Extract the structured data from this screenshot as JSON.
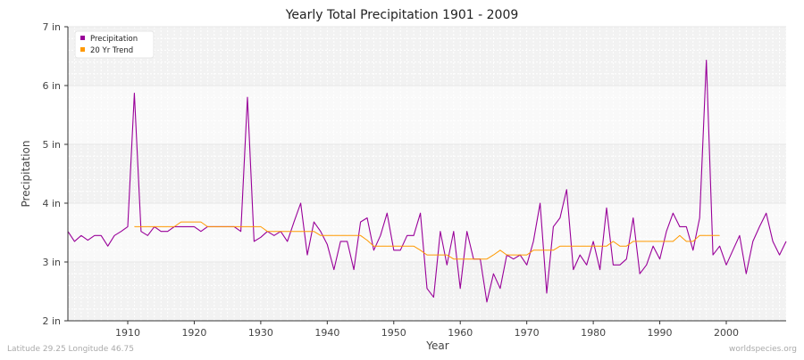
{
  "chart_data": {
    "type": "line",
    "title": "Yearly Total Precipitation 1901 - 2009",
    "xlabel": "Year",
    "ylabel": "Precipitation",
    "xlim": [
      1901,
      2009
    ],
    "ylim": [
      2,
      7
    ],
    "x_ticks": [
      1910,
      1920,
      1930,
      1940,
      1950,
      1960,
      1970,
      1980,
      1990,
      2000
    ],
    "y_ticks": [
      {
        "value": 2,
        "label": "2 in"
      },
      {
        "value": 3,
        "label": "3 in"
      },
      {
        "value": 4,
        "label": "4 in"
      },
      {
        "value": 5,
        "label": "5 in"
      },
      {
        "value": 6,
        "label": "6 in"
      },
      {
        "value": 7,
        "label": "7 in"
      }
    ],
    "grid": true,
    "legend_position": "top-left",
    "series": [
      {
        "name": "Precipitation",
        "color": "#990099",
        "x_start": 1901,
        "values": [
          3.52,
          3.35,
          3.45,
          3.37,
          3.45,
          3.45,
          3.27,
          3.45,
          3.52,
          3.6,
          5.87,
          3.52,
          3.45,
          3.6,
          3.52,
          3.52,
          3.6,
          3.6,
          3.6,
          3.6,
          3.52,
          3.6,
          3.6,
          3.6,
          3.6,
          3.6,
          3.52,
          5.8,
          3.35,
          3.42,
          3.52,
          3.45,
          3.52,
          3.35,
          3.68,
          4.0,
          3.12,
          3.68,
          3.52,
          3.3,
          2.87,
          3.35,
          3.35,
          2.87,
          3.68,
          3.75,
          3.2,
          3.45,
          3.83,
          3.2,
          3.2,
          3.45,
          3.45,
          3.83,
          2.55,
          2.4,
          3.52,
          2.95,
          3.52,
          2.55,
          3.52,
          3.05,
          3.05,
          2.32,
          2.8,
          2.55,
          3.12,
          3.05,
          3.12,
          2.95,
          3.35,
          4.0,
          2.47,
          3.6,
          3.75,
          4.23,
          2.87,
          3.12,
          2.95,
          3.35,
          2.87,
          3.92,
          2.95,
          2.95,
          3.05,
          3.75,
          2.8,
          2.95,
          3.27,
          3.05,
          3.52,
          3.83,
          3.6,
          3.6,
          3.2,
          3.75,
          6.43,
          3.12,
          3.27,
          2.95,
          3.2,
          3.45,
          2.8,
          3.35,
          3.6,
          3.83,
          3.35,
          3.12,
          3.35
        ]
      },
      {
        "name": "20 Yr Trend",
        "color": "#ff9900",
        "x_start": 1911,
        "values": [
          3.6,
          3.6,
          3.6,
          3.6,
          3.6,
          3.6,
          3.6,
          3.68,
          3.68,
          3.68,
          3.68,
          3.6,
          3.6,
          3.6,
          3.6,
          3.6,
          3.6,
          3.6,
          3.6,
          3.6,
          3.52,
          3.52,
          3.52,
          3.52,
          3.52,
          3.52,
          3.52,
          3.52,
          3.45,
          3.45,
          3.45,
          3.45,
          3.45,
          3.45,
          3.45,
          3.37,
          3.27,
          3.27,
          3.27,
          3.27,
          3.27,
          3.27,
          3.27,
          3.2,
          3.12,
          3.12,
          3.12,
          3.12,
          3.05,
          3.05,
          3.05,
          3.05,
          3.05,
          3.05,
          3.12,
          3.2,
          3.12,
          3.12,
          3.12,
          3.12,
          3.2,
          3.2,
          3.2,
          3.2,
          3.27,
          3.27,
          3.27,
          3.27,
          3.27,
          3.27,
          3.27,
          3.27,
          3.35,
          3.27,
          3.27,
          3.35,
          3.35,
          3.35,
          3.35,
          3.35,
          3.35,
          3.35,
          3.45,
          3.35,
          3.35,
          3.45,
          3.45,
          3.45,
          3.45
        ]
      }
    ]
  },
  "footer": {
    "location": "Latitude 29.25 Longitude 46.75",
    "source": "worldspecies.org"
  }
}
